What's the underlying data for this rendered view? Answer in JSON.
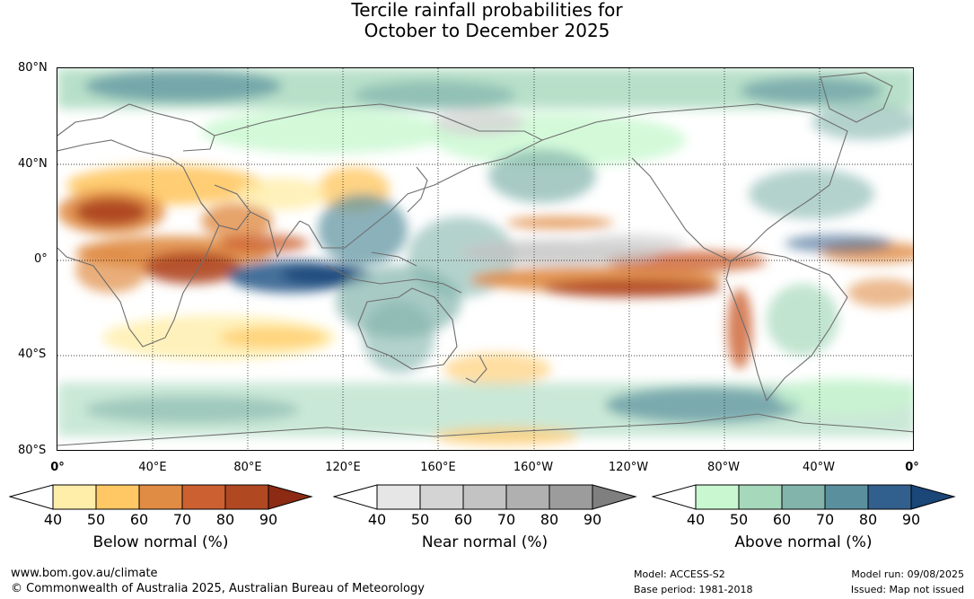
{
  "title": {
    "line1": "Tercile rainfall probabilities for",
    "line2": "October to December 2025"
  },
  "map": {
    "lat_labels": [
      "80°N",
      "40°N",
      "0°",
      "40°S",
      "80°S"
    ],
    "lon_labels": [
      "0°",
      "40°E",
      "80°E",
      "120°E",
      "160°E",
      "160°W",
      "120°W",
      "80°W",
      "40°W",
      "0°"
    ],
    "colors": {
      "ocean_base": "#ffffff",
      "coastline": "#7a7a7a"
    }
  },
  "legends": [
    {
      "title": "Below normal (%)",
      "ticks": [
        "40",
        "50",
        "60",
        "70",
        "80",
        "90"
      ],
      "colors": [
        "#ffeeaa",
        "#ffc864",
        "#e08c44",
        "#cc6030",
        "#b04822",
        "#8c2a14"
      ]
    },
    {
      "title": "Near normal (%)",
      "ticks": [
        "40",
        "50",
        "60",
        "70",
        "80",
        "90"
      ],
      "colors": [
        "#e6e6e6",
        "#d4d4d4",
        "#c3c3c3",
        "#b0b0b0",
        "#9c9c9c",
        "#7f7f7f"
      ]
    },
    {
      "title": "Above normal (%)",
      "ticks": [
        "40",
        "50",
        "60",
        "70",
        "80",
        "90"
      ],
      "colors": [
        "#c8f7d0",
        "#a6d8bc",
        "#82b4ac",
        "#5a909e",
        "#32608e",
        "#1a4678"
      ]
    }
  ],
  "footer": {
    "website": "www.bom.gov.au/climate",
    "copyright": "© Commonwealth of Australia 2025, Australian Bureau of Meteorology",
    "model": "Model: ACCESS-S2",
    "base_period": "Base period: 1981-2018",
    "model_run": "Model run: 09/08/2025",
    "issued": "Issued: Map not issued"
  }
}
